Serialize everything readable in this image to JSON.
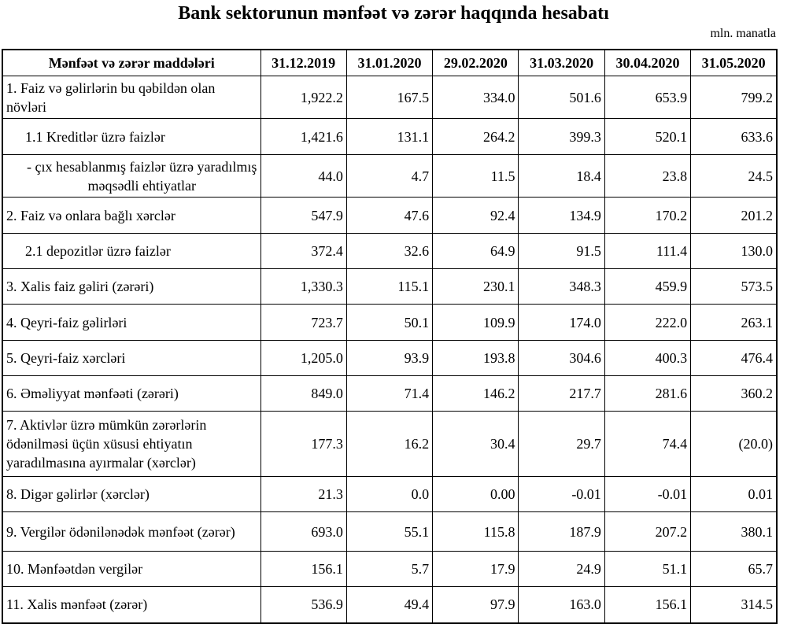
{
  "header": {
    "title": "Bank sektorunun mənfəət və zərər haqqında hesabatı",
    "unit": "mln. manatla"
  },
  "table": {
    "columns": [
      "Mənfəət və zərər maddələri",
      "31.12.2019",
      "31.01.2020",
      "29.02.2020",
      "31.03.2020",
      "30.04.2020",
      "31.05.2020"
    ],
    "rows": [
      [
        "1. Faiz və gəlirlərin bu qəbildən olan növləri",
        "1,922.2",
        "167.5",
        "334.0",
        "501.6",
        "653.9",
        "799.2"
      ],
      [
        "1.1 Kreditlər üzrə faizlər",
        "1,421.6",
        "131.1",
        "264.2",
        "399.3",
        "520.1",
        "633.6"
      ],
      [
        "-  çıx hesablanmış faizlər üzrə yaradılmış məqsədli ehtiyatlar",
        "44.0",
        "4.7",
        "11.5",
        "18.4",
        "23.8",
        "24.5"
      ],
      [
        "2. Faiz və onlara bağlı xərclər",
        "547.9",
        "47.6",
        "92.4",
        "134.9",
        "170.2",
        "201.2"
      ],
      [
        "2.1 depozitlər üzrə faizlər",
        "372.4",
        "32.6",
        "64.9",
        "91.5",
        "111.4",
        "130.0"
      ],
      [
        "3. Xalis faiz gəliri (zərəri)",
        "1,330.3",
        "115.1",
        "230.1",
        "348.3",
        "459.9",
        "573.5"
      ],
      [
        "4. Qeyri-faiz gəlirləri",
        "723.7",
        "50.1",
        "109.9",
        "174.0",
        "222.0",
        "263.1"
      ],
      [
        "5. Qeyri-faiz xərcləri",
        "1,205.0",
        "93.9",
        "193.8",
        "304.6",
        "400.3",
        "476.4"
      ],
      [
        "6. Əməliyyat mənfəəti (zərəri)",
        "849.0",
        "71.4",
        "146.2",
        "217.7",
        "281.6",
        "360.2"
      ],
      [
        "7. Aktivlər üzrə mümkün zərərlərin ödənilməsi üçün xüsusi ehtiyatın yaradılmasına ayırmalar (xərclər)",
        "177.3",
        "16.2",
        "30.4",
        "29.7",
        "74.4",
        "(20.0)"
      ],
      [
        "8. Digər gəlirlər (xərclər)",
        "21.3",
        "0.0",
        "0.00",
        "-0.01",
        "-0.01",
        "0.01"
      ],
      [
        "9. Vergilər ödənilənədək mənfəət (zərər)",
        "693.0",
        "55.1",
        "115.8",
        "187.9",
        "207.2",
        "380.1"
      ],
      [
        "10. Mənfəətdən vergilər",
        "156.1",
        "5.7",
        "17.9",
        "24.9",
        "51.1",
        "65.7"
      ],
      [
        "11. Xalis mənfəət (zərər)",
        "536.9",
        "49.4",
        "97.9",
        "163.0",
        "156.1",
        "314.5"
      ]
    ]
  }
}
